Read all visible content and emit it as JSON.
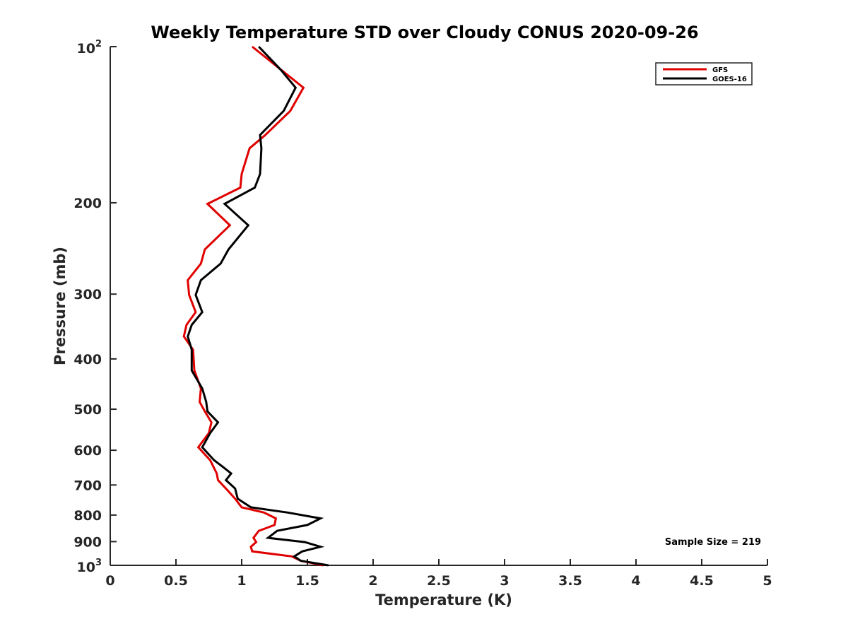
{
  "chart_data": {
    "type": "line",
    "title": "Weekly Temperature STD over Cloudy CONUS 2020-09-26",
    "xlabel": "Temperature (K)",
    "ylabel": "Pressure (mb)",
    "xlim": [
      0,
      5
    ],
    "ylim": [
      100,
      1000
    ],
    "y_scale": "log",
    "y_reversed": true,
    "grid": false,
    "legend_position": "top-right",
    "x_ticks": [
      "0",
      "0.5",
      "1",
      "1.5",
      "2",
      "2.5",
      "3",
      "3.5",
      "4",
      "4.5",
      "5"
    ],
    "x_tick_values": [
      0,
      0.5,
      1,
      1.5,
      2,
      2.5,
      3,
      3.5,
      4,
      4.5,
      5
    ],
    "y_ticks": [
      {
        "value": 100,
        "base": "10",
        "exp": "2"
      },
      {
        "value": 200,
        "label": "200"
      },
      {
        "value": 300,
        "label": "300"
      },
      {
        "value": 400,
        "label": "400"
      },
      {
        "value": 500,
        "label": "500"
      },
      {
        "value": 600,
        "label": "600"
      },
      {
        "value": 700,
        "label": "700"
      },
      {
        "value": 800,
        "label": "800"
      },
      {
        "value": 900,
        "label": "900"
      },
      {
        "value": 1000,
        "base": "10",
        "exp": "3"
      }
    ],
    "annotation": "Sample Size = 219",
    "series": [
      {
        "name": "GFS",
        "color": "#e00000",
        "points": [
          [
            1.08,
            100
          ],
          [
            1.47,
            120
          ],
          [
            1.37,
            133
          ],
          [
            1.18,
            148
          ],
          [
            1.06,
            157
          ],
          [
            1.0,
            176
          ],
          [
            0.99,
            187
          ],
          [
            0.74,
            201
          ],
          [
            0.91,
            221
          ],
          [
            0.72,
            246
          ],
          [
            0.69,
            262
          ],
          [
            0.59,
            282
          ],
          [
            0.6,
            301
          ],
          [
            0.65,
            325
          ],
          [
            0.58,
            344
          ],
          [
            0.56,
            362
          ],
          [
            0.63,
            384
          ],
          [
            0.64,
            421
          ],
          [
            0.69,
            456
          ],
          [
            0.68,
            484
          ],
          [
            0.72,
            505
          ],
          [
            0.77,
            530
          ],
          [
            0.75,
            556
          ],
          [
            0.67,
            592
          ],
          [
            0.76,
            627
          ],
          [
            0.81,
            665
          ],
          [
            0.82,
            685
          ],
          [
            0.88,
            711
          ],
          [
            0.95,
            744
          ],
          [
            1.0,
            773
          ],
          [
            1.17,
            791
          ],
          [
            1.26,
            812
          ],
          [
            1.25,
            836
          ],
          [
            1.13,
            858
          ],
          [
            1.09,
            885
          ],
          [
            1.11,
            902
          ],
          [
            1.07,
            921
          ],
          [
            1.08,
            940
          ],
          [
            1.38,
            961
          ],
          [
            1.45,
            980
          ],
          [
            1.62,
            1000
          ]
        ]
      },
      {
        "name": "GOES-16",
        "color": "#000000",
        "points": [
          [
            1.13,
            100
          ],
          [
            1.3,
            111
          ],
          [
            1.41,
            120
          ],
          [
            1.32,
            133
          ],
          [
            1.14,
            148
          ],
          [
            1.15,
            157
          ],
          [
            1.14,
            176
          ],
          [
            1.1,
            187
          ],
          [
            0.87,
            201
          ],
          [
            1.05,
            221
          ],
          [
            0.9,
            246
          ],
          [
            0.84,
            262
          ],
          [
            0.69,
            282
          ],
          [
            0.65,
            301
          ],
          [
            0.7,
            325
          ],
          [
            0.62,
            344
          ],
          [
            0.59,
            362
          ],
          [
            0.62,
            384
          ],
          [
            0.62,
            421
          ],
          [
            0.7,
            456
          ],
          [
            0.73,
            484
          ],
          [
            0.74,
            505
          ],
          [
            0.82,
            530
          ],
          [
            0.76,
            556
          ],
          [
            0.7,
            592
          ],
          [
            0.79,
            627
          ],
          [
            0.86,
            647
          ],
          [
            0.92,
            665
          ],
          [
            0.88,
            685
          ],
          [
            0.95,
            711
          ],
          [
            0.97,
            744
          ],
          [
            1.07,
            773
          ],
          [
            1.35,
            791
          ],
          [
            1.6,
            812
          ],
          [
            1.5,
            836
          ],
          [
            1.27,
            858
          ],
          [
            1.2,
            885
          ],
          [
            1.48,
            902
          ],
          [
            1.6,
            921
          ],
          [
            1.46,
            940
          ],
          [
            1.4,
            961
          ],
          [
            1.45,
            980
          ],
          [
            1.66,
            1000
          ]
        ]
      }
    ]
  }
}
